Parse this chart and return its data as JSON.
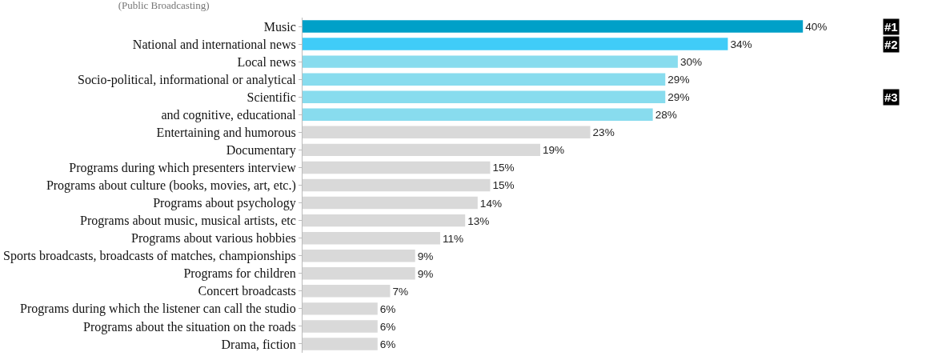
{
  "chart_data": {
    "type": "bar",
    "orientation": "horizontal",
    "subtitle": "(Public Broadcasting)",
    "categories": [
      "Music",
      "National and international news",
      "Local news",
      "Socio-political, informational or analytical",
      "Scientific",
      "and cognitive, educational",
      "Entertaining and humorous",
      "Documentary",
      "Programs during which presenters interview",
      "Programs about culture (books, movies, art, etc.)",
      "Programs about psychology",
      "Programs about music, musical artists, etc",
      "Programs about various hobbies",
      "Sports broadcasts, broadcasts of matches, championships",
      "Programs for children",
      "Concert broadcasts",
      "Programs during which the listener can call the studio",
      "Programs about the situation on the roads",
      "Drama, fiction"
    ],
    "values": [
      40,
      34,
      30,
      29,
      29,
      28,
      23,
      19,
      15,
      15,
      14,
      13,
      11,
      9,
      9,
      7,
      6,
      6,
      6
    ],
    "value_labels": [
      "40%",
      "34%",
      "30%",
      "29%",
      "29%",
      "28%",
      "23%",
      "19%",
      "15%",
      "15%",
      "14%",
      "13%",
      "11%",
      "9%",
      "9%",
      "7%",
      "6%",
      "6%",
      "6%"
    ],
    "colors": [
      "#00a0c8",
      "#40ccf8",
      "#88dcee",
      "#88dcee",
      "#88dcee",
      "#88dcee",
      "#d9d9d9",
      "#d9d9d9",
      "#d9d9d9",
      "#d9d9d9",
      "#d9d9d9",
      "#d9d9d9",
      "#d9d9d9",
      "#d9d9d9",
      "#d9d9d9",
      "#d9d9d9",
      "#d9d9d9",
      "#d9d9d9",
      "#d9d9d9"
    ],
    "annotations": [
      "#1",
      "#2",
      "#3"
    ]
  }
}
